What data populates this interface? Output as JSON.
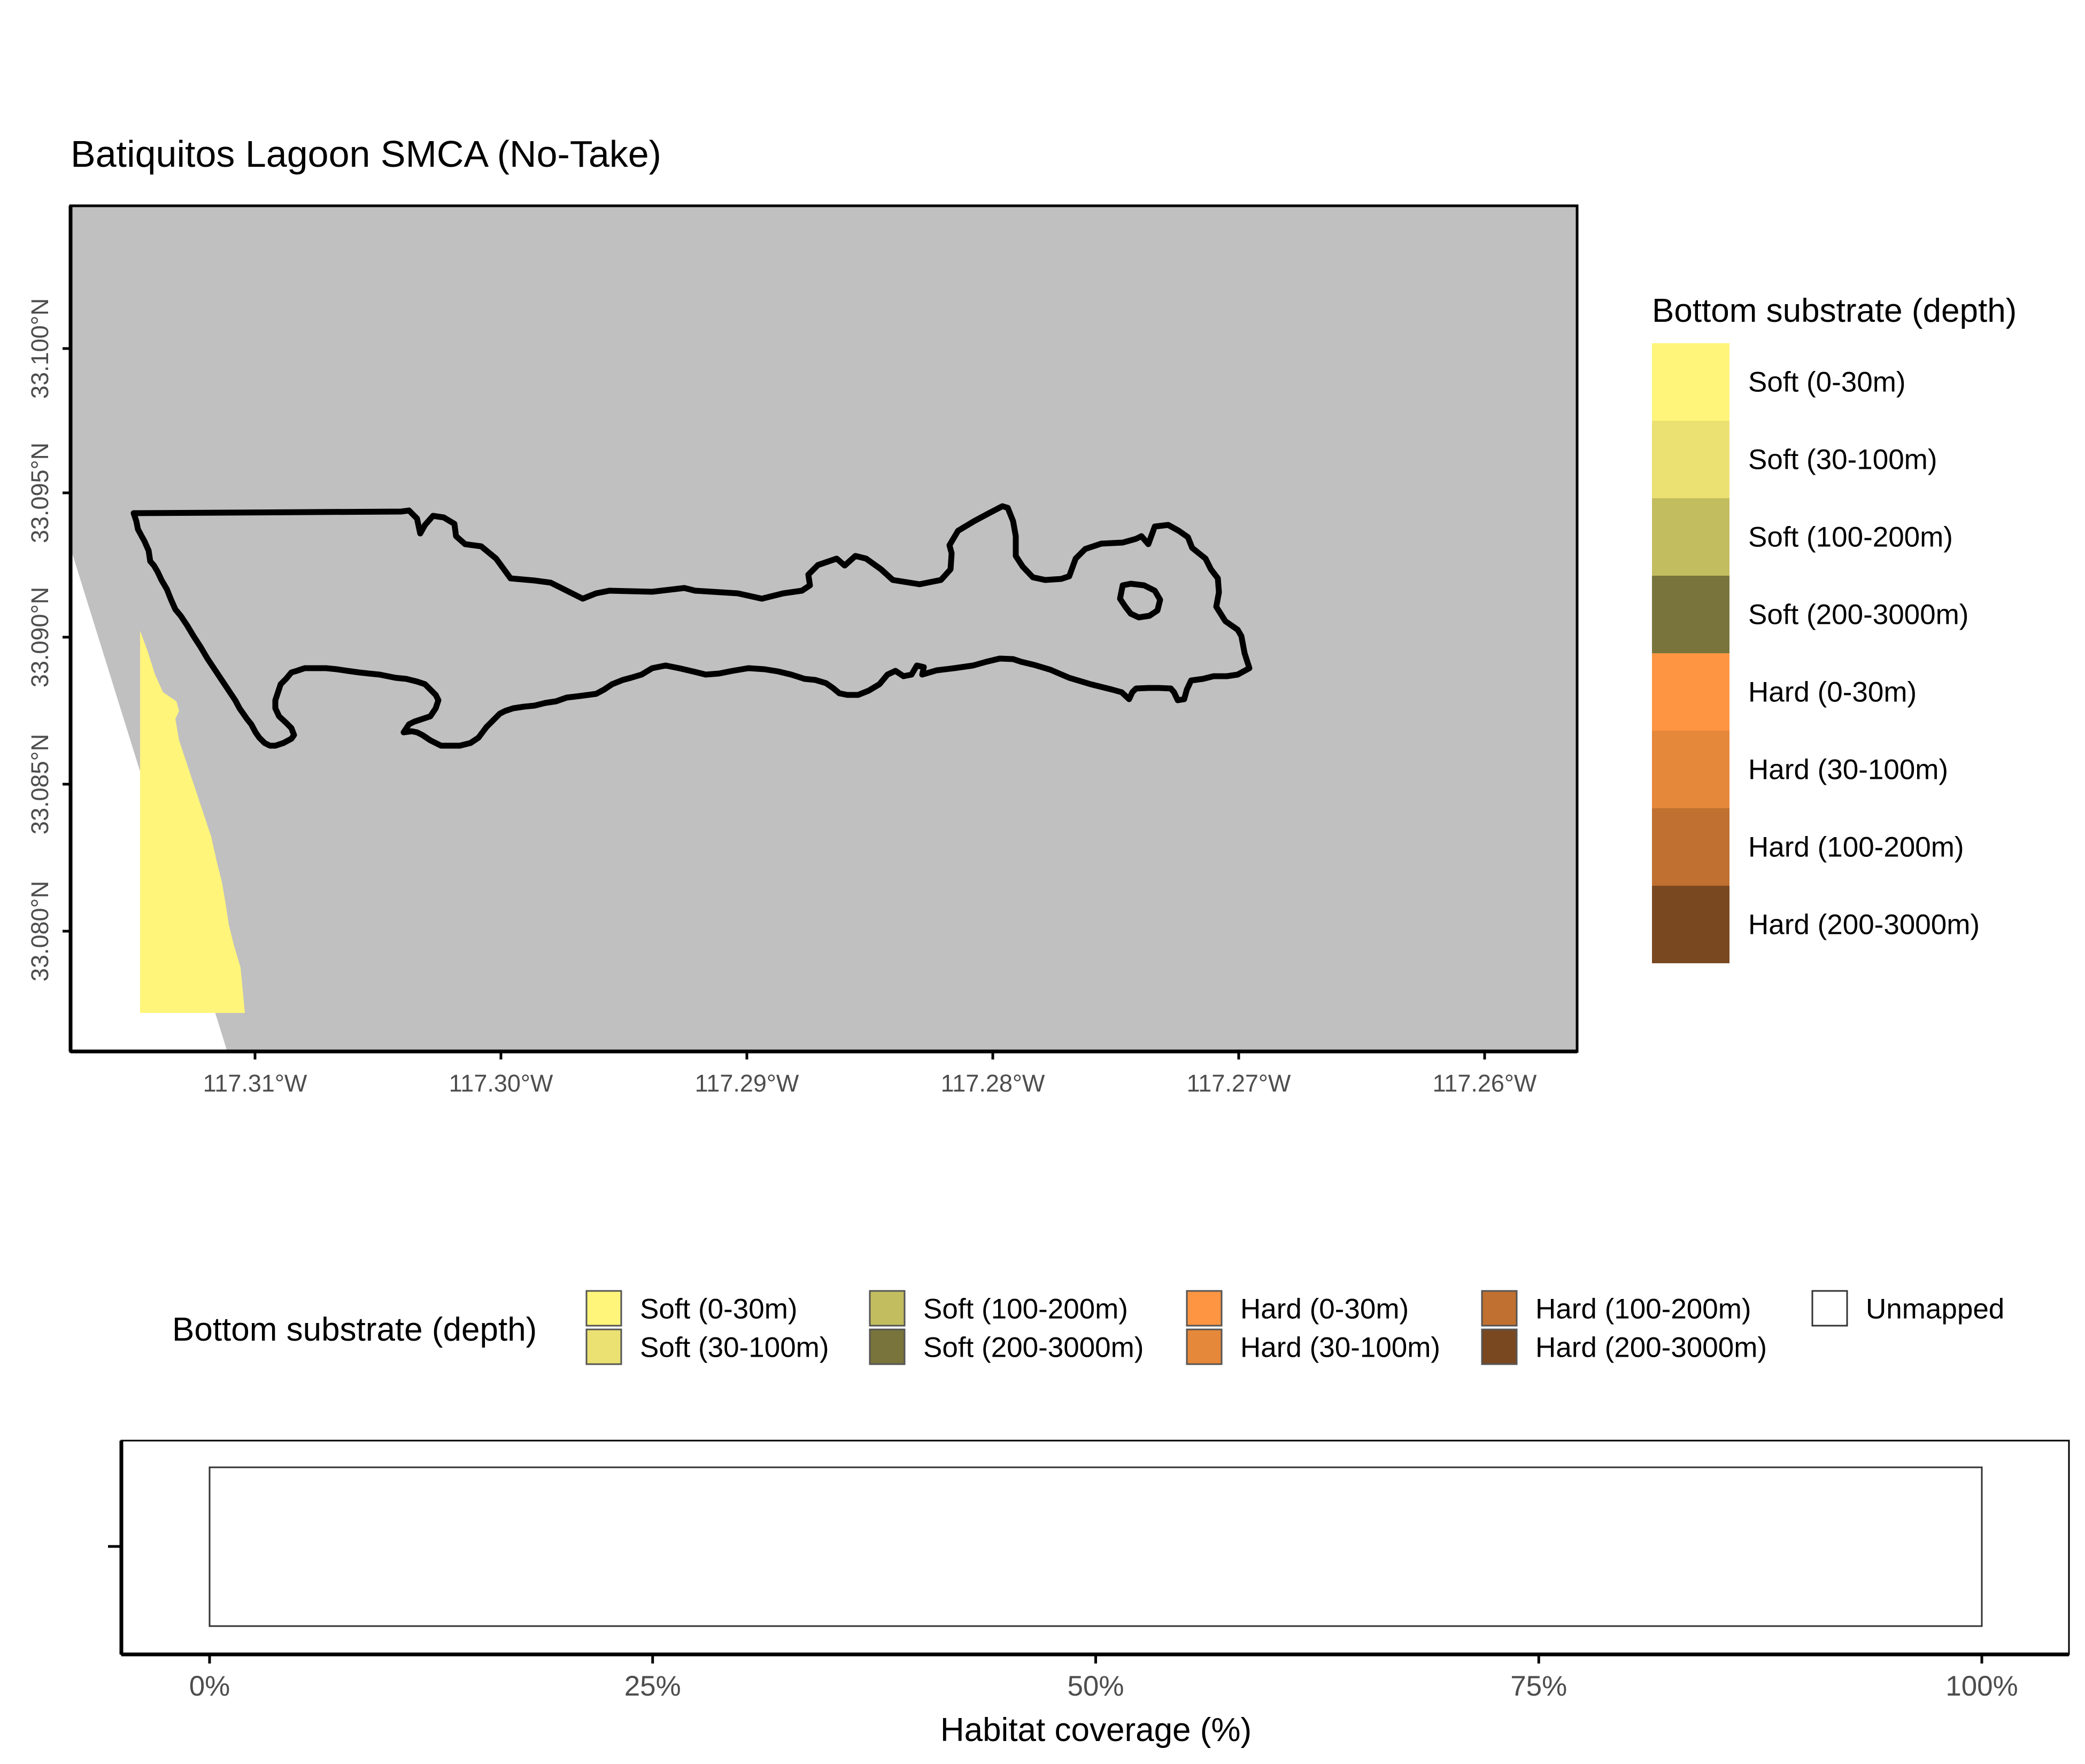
{
  "map": {
    "title": "Batiquitos Lagoon SMCA (No-Take)",
    "lon_ticks": [
      "117.31°W",
      "117.30°W",
      "117.29°W",
      "117.28°W",
      "117.27°W",
      "117.26°W"
    ],
    "lat_ticks": [
      "33.100°N",
      "33.095°N",
      "33.090°N",
      "33.085°N",
      "33.080°N"
    ],
    "colors": {
      "land": "#c0c0c0",
      "sea": "#ffffff",
      "boundary": "#000000"
    }
  },
  "legend": {
    "title": "Bottom substrate (depth)",
    "items": [
      {
        "label": "Soft (0-30m)",
        "color": "#fff57a"
      },
      {
        "label": "Soft (30-100m)",
        "color": "#ebe172"
      },
      {
        "label": "Soft (100-200m)",
        "color": "#c2bd5f"
      },
      {
        "label": "Soft (200-3000m)",
        "color": "#78743c"
      },
      {
        "label": "Hard (0-30m)",
        "color": "#fd9542"
      },
      {
        "label": "Hard (30-100m)",
        "color": "#e6883a"
      },
      {
        "label": "Hard (100-200m)",
        "color": "#c07030"
      },
      {
        "label": "Hard (200-3000m)",
        "color": "#7a4820"
      }
    ]
  },
  "bottom_legend": {
    "title": "Bottom substrate (depth)",
    "items": [
      {
        "label": "Soft (0-30m)",
        "color": "#fff57a"
      },
      {
        "label": "Soft (30-100m)",
        "color": "#ebe172"
      },
      {
        "label": "Soft (100-200m)",
        "color": "#c2bd5f"
      },
      {
        "label": "Soft (200-3000m)",
        "color": "#78743c"
      },
      {
        "label": "Hard (0-30m)",
        "color": "#fd9542"
      },
      {
        "label": "Hard (30-100m)",
        "color": "#e6883a"
      },
      {
        "label": "Hard (100-200m)",
        "color": "#c07030"
      },
      {
        "label": "Hard (200-3000m)",
        "color": "#7a4820"
      },
      {
        "label": "Unmapped",
        "color": "#ffffff"
      }
    ]
  },
  "chart_data": {
    "type": "bar",
    "orientation": "horizontal",
    "categories": [
      ""
    ],
    "series": [
      {
        "name": "Unmapped",
        "values": [
          100
        ]
      }
    ],
    "xlabel": "Habitat coverage (%)",
    "xlim": [
      0,
      100
    ],
    "x_ticks": [
      "0%",
      "25%",
      "50%",
      "75%",
      "100%"
    ]
  }
}
